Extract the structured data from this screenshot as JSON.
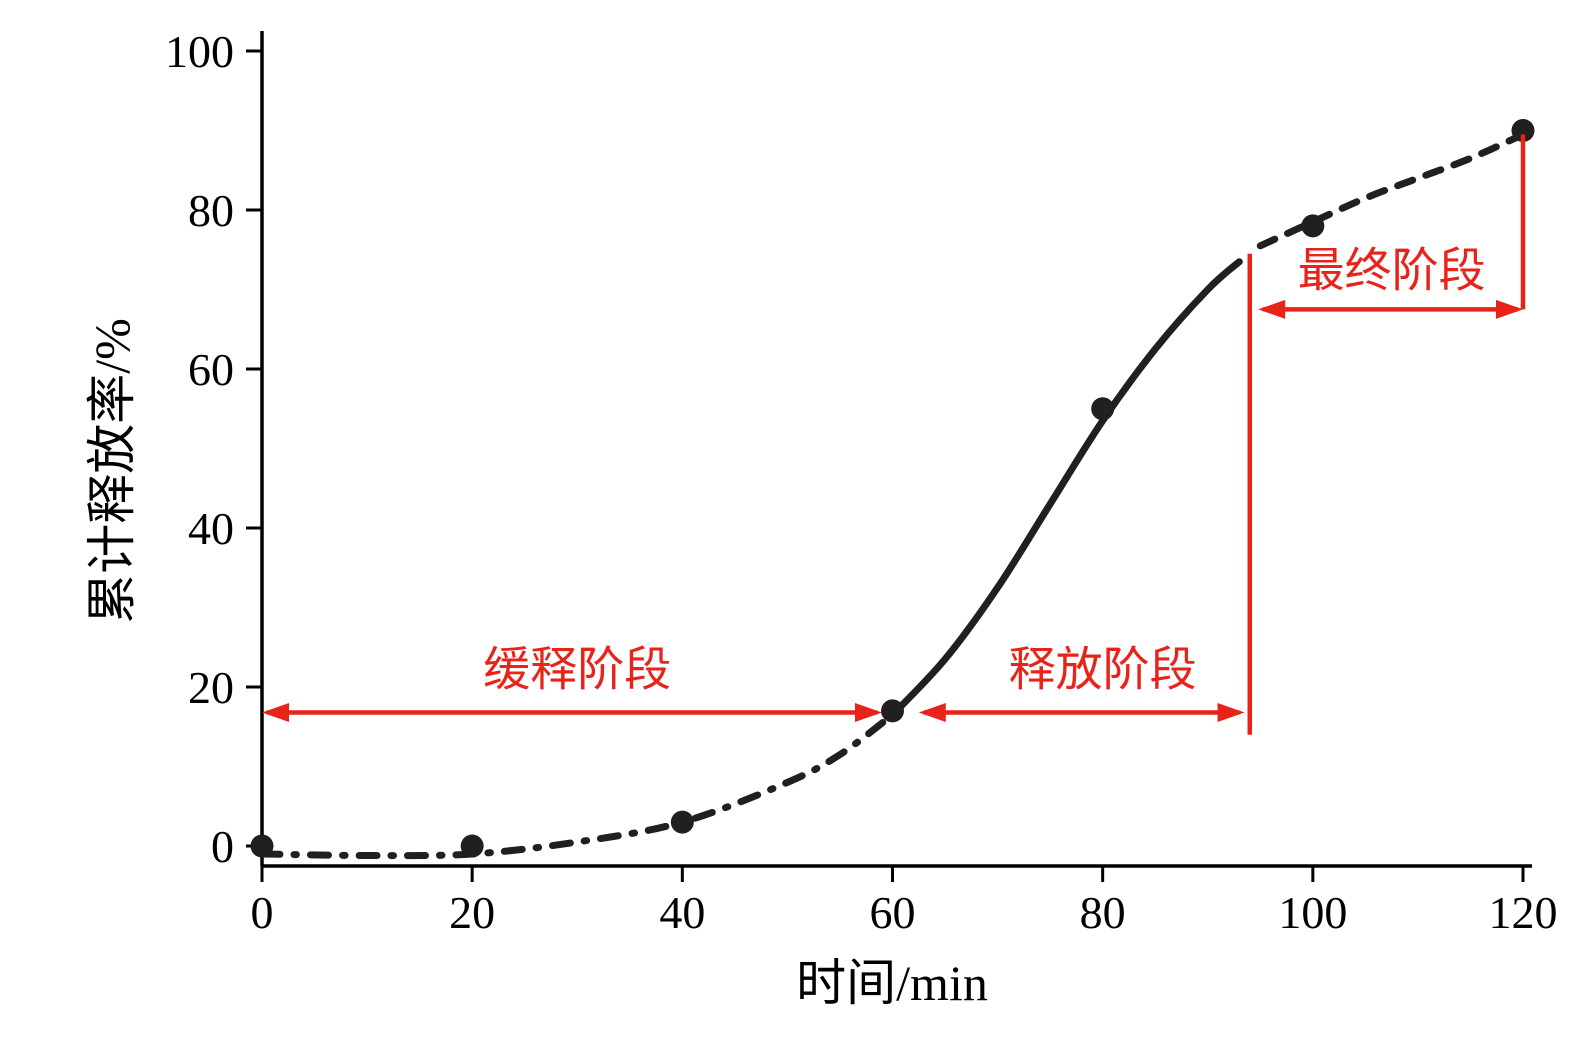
{
  "chart_data": {
    "type": "line",
    "title": "",
    "xlabel": "时间/min",
    "ylabel": "累计释放率/%",
    "xlim": [
      0,
      120
    ],
    "ylim": [
      0,
      100
    ],
    "xticks": [
      0,
      20,
      40,
      60,
      80,
      100,
      120
    ],
    "yticks": [
      0,
      20,
      40,
      60,
      80,
      100
    ],
    "grid": false,
    "legend": "none",
    "axis_color": "#000000",
    "curve_color": "#221f1f",
    "marker_color": "#221f1f",
    "series": [
      {
        "name": "cumulative-release-rate",
        "x": [
          0,
          20,
          40,
          60,
          80,
          100,
          120
        ],
        "y": [
          0,
          0,
          3,
          17,
          55,
          78,
          90
        ]
      }
    ],
    "curve_segments": [
      {
        "style": "dashdot",
        "points": [
          [
            0,
            -1
          ],
          [
            10,
            -1.2
          ],
          [
            20,
            -1
          ],
          [
            30,
            0.5
          ],
          [
            40,
            3
          ],
          [
            50,
            8
          ],
          [
            55,
            11.5
          ],
          [
            60,
            16.5
          ]
        ]
      },
      {
        "style": "solid",
        "points": [
          [
            60,
            16.5
          ],
          [
            65,
            23.5
          ],
          [
            70,
            32.5
          ],
          [
            75,
            43
          ],
          [
            80,
            53.5
          ],
          [
            85,
            62.5
          ],
          [
            90,
            70
          ],
          [
            93,
            73.5
          ]
        ]
      },
      {
        "style": "dashed",
        "points": [
          [
            95,
            75.5
          ],
          [
            100,
            78.5
          ],
          [
            105,
            81.5
          ],
          [
            110,
            84
          ],
          [
            115,
            86.5
          ],
          [
            120,
            89.5
          ]
        ]
      }
    ],
    "annotations": {
      "color": "#e8231a",
      "stages": [
        {
          "label": "缓释阶段",
          "arrow": {
            "x1": 0,
            "x2": 59,
            "y": 16.8
          },
          "label_at": {
            "x": 30,
            "y": 22.8
          }
        },
        {
          "label": "释放阶段",
          "arrow": {
            "x1": 62.5,
            "x2": 93.5,
            "y": 16.8
          },
          "label_at": {
            "x": 80,
            "y": 22.8
          }
        },
        {
          "label": "最终阶段",
          "arrow": {
            "x1": 94.8,
            "x2": 120,
            "y": 67.5
          },
          "label_at": {
            "x": 107.5,
            "y": 73
          }
        }
      ],
      "vlines": [
        {
          "x": 94,
          "y1": 14,
          "y2": 74.5
        },
        {
          "x": 120,
          "y1": 67.5,
          "y2": 89.5
        }
      ]
    }
  }
}
